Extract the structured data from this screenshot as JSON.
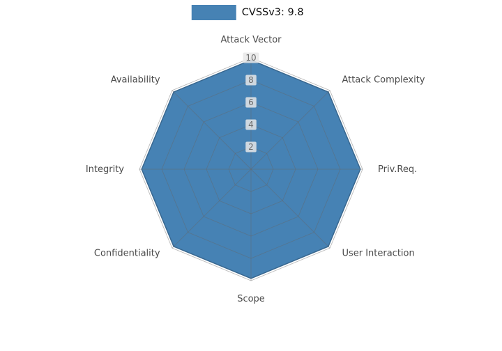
{
  "legend": {
    "label": "CVSSv3: 9.8"
  },
  "chart_data": {
    "type": "radar",
    "categories": [
      "Attack Vector",
      "Attack Complexity",
      "Priv.Req.",
      "User Interaction",
      "Scope",
      "Confidentiality",
      "Integrity",
      "Availability"
    ],
    "series": [
      {
        "name": "CVSSv3: 9.8",
        "values": [
          9.8,
          9.8,
          9.8,
          9.8,
          9.8,
          9.8,
          9.8,
          9.8
        ]
      }
    ],
    "radial_ticks": [
      2,
      4,
      6,
      8,
      10
    ],
    "rlim": [
      0,
      10
    ],
    "start_angle_deg": 90,
    "direction": "clockwise",
    "grid": true,
    "legend_position": "top-center",
    "colors": {
      "series_fill": "#4682B4",
      "series_edge": "#38678F",
      "grid_line": "#666666",
      "tick_label": "#6B6B6B",
      "tick_box": "#E8E8E8",
      "category_label": "#4A4A4A",
      "legend_text": "#111111",
      "background": "#FFFFFF"
    }
  }
}
